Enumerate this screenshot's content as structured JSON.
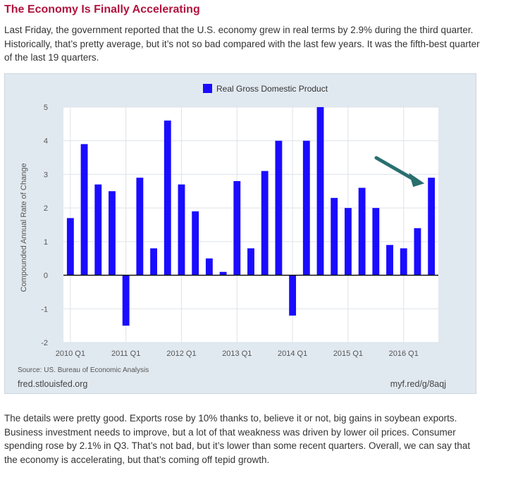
{
  "article": {
    "headline": "The Economy Is Finally Accelerating",
    "intro": "Last Friday, the government reported that the U.S. economy grew in real terms by 2.9% during the third quarter. Historically, that’s pretty average, but it’s not so bad compared with the last few years. It was the fifth-best quarter of the last 19 quarters.",
    "body": "The details were pretty good. Exports rose by 10% thanks to, believe it or not, big gains in soybean exports. Business investment needs to improve, but a lot of that weakness was driven by lower oil prices. Consumer spending rose by 2.1% in Q3. That’s not bad, but it’s lower than some recent quarters. Overall, we can say that the economy is accelerating, but that’s coming off tepid growth."
  },
  "chart_footer": {
    "source": "Source: US. Bureau of Economic Analysis",
    "brand": "fred.stlouisfed.org",
    "short_url": "myf.red/g/8aqj"
  },
  "colors": {
    "bar": "#1a0cff",
    "arrow": "#2a6f6f",
    "headline": "#b0143e",
    "plot_bg": "#ffffff",
    "panel_bg": "#e1e9f0"
  },
  "chart_data": {
    "type": "bar",
    "title": "",
    "xlabel": "",
    "ylabel": "Compounded Annual Rate of Change",
    "ylim": [
      -2,
      5
    ],
    "yticks": [
      -2,
      -1,
      0,
      1,
      2,
      3,
      4,
      5
    ],
    "grid": true,
    "legend_position": "top-center",
    "categories": [
      "2010 Q1",
      "2010 Q2",
      "2010 Q3",
      "2010 Q4",
      "2011 Q1",
      "2011 Q2",
      "2011 Q3",
      "2011 Q4",
      "2012 Q1",
      "2012 Q2",
      "2012 Q3",
      "2012 Q4",
      "2013 Q1",
      "2013 Q2",
      "2013 Q3",
      "2013 Q4",
      "2014 Q1",
      "2014 Q2",
      "2014 Q3",
      "2014 Q4",
      "2015 Q1",
      "2015 Q2",
      "2015 Q3",
      "2015 Q4",
      "2016 Q1",
      "2016 Q2",
      "2016 Q3"
    ],
    "xtick_labels": [
      "2010 Q1",
      "2011 Q1",
      "2012 Q1",
      "2013 Q1",
      "2014 Q1",
      "2015 Q1",
      "2016 Q1"
    ],
    "series": [
      {
        "name": "Real Gross Domestic Product",
        "values": [
          1.7,
          3.9,
          2.7,
          2.5,
          -1.5,
          2.9,
          0.8,
          4.6,
          2.7,
          1.9,
          0.5,
          0.1,
          2.8,
          0.8,
          3.1,
          4.0,
          -1.2,
          4.0,
          5.0,
          2.3,
          2.0,
          2.6,
          2.0,
          0.9,
          0.8,
          1.4,
          2.9
        ]
      }
    ],
    "annotation": {
      "type": "arrow",
      "points_to": "2016 Q3"
    }
  }
}
